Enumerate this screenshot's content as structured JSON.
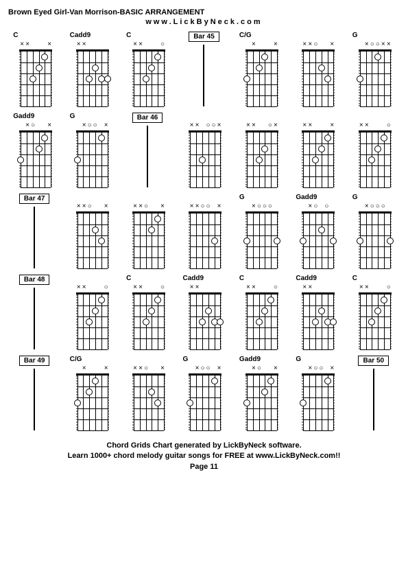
{
  "title": "Brown Eyed Girl-Van Morrison-BASIC ARRANGEMENT",
  "website": "www.LickByNeck.com",
  "footer_line1": "Chord Grids Chart generated by LickByNeck software.",
  "footer_line2": "Learn 1000+ chord melody guitar songs for FREE at www.LickByNeck.com!!",
  "page_label": "Page 11",
  "diagram_style": {
    "strings": 6,
    "frets": 5,
    "fret_height": 16,
    "string_spacing": 8.8,
    "dot_color": "#ffffff",
    "dot_border": "#000000",
    "grid_color": "#000000",
    "side_border_color": "#888888"
  },
  "cells": [
    {
      "type": "chord",
      "label": "C",
      "marks": [
        "×",
        "×",
        "",
        "",
        "",
        "×"
      ],
      "dots": [
        [
          3,
          3
        ],
        [
          4,
          2
        ],
        [
          5,
          1
        ]
      ]
    },
    {
      "type": "chord",
      "label": "Cadd9",
      "marks": [
        "×",
        "×",
        "",
        "",
        "",
        ""
      ],
      "dots": [
        [
          3,
          3
        ],
        [
          4,
          2
        ],
        [
          5,
          3
        ],
        [
          6,
          3
        ]
      ]
    },
    {
      "type": "chord",
      "label": "C",
      "marks": [
        "×",
        "×",
        "",
        "",
        "",
        "○"
      ],
      "dots": [
        [
          3,
          3
        ],
        [
          4,
          2
        ],
        [
          5,
          1
        ]
      ]
    },
    {
      "type": "bar",
      "label": "Bar 45"
    },
    {
      "type": "chord",
      "label": "C/G",
      "marks": [
        "",
        "×",
        "",
        "",
        "",
        "×"
      ],
      "dots": [
        [
          1,
          3
        ],
        [
          3,
          2
        ],
        [
          4,
          1
        ]
      ]
    },
    {
      "type": "chord",
      "label": "",
      "marks": [
        "×",
        "×",
        "○",
        "",
        "",
        "×"
      ],
      "dots": [
        [
          4,
          2
        ],
        [
          5,
          3
        ]
      ]
    },
    {
      "type": "chord",
      "label": "G",
      "marks": [
        "",
        "×",
        "○",
        "○",
        "×",
        "×"
      ],
      "dots": [
        [
          1,
          3
        ],
        [
          4,
          1
        ]
      ]
    },
    {
      "type": "chord",
      "label": "Gadd9",
      "marks": [
        "",
        "×",
        "○",
        "",
        "",
        "×"
      ],
      "dots": [
        [
          1,
          3
        ],
        [
          4,
          2
        ],
        [
          5,
          1
        ]
      ]
    },
    {
      "type": "chord",
      "label": "G",
      "marks": [
        "",
        "×",
        "○",
        "○",
        "",
        "×"
      ],
      "dots": [
        [
          1,
          3
        ],
        [
          5,
          1
        ]
      ]
    },
    {
      "type": "bar",
      "label": "Bar 46"
    },
    {
      "type": "chord",
      "label": "",
      "marks": [
        "×",
        "×",
        "",
        "○",
        "○",
        "×"
      ],
      "dots": [
        [
          3,
          3
        ]
      ]
    },
    {
      "type": "chord",
      "label": "",
      "marks": [
        "×",
        "×",
        "",
        "",
        "○",
        "×"
      ],
      "dots": [
        [
          3,
          3
        ],
        [
          4,
          2
        ]
      ]
    },
    {
      "type": "chord",
      "label": "",
      "marks": [
        "×",
        "×",
        "",
        "",
        "",
        "×"
      ],
      "dots": [
        [
          3,
          3
        ],
        [
          4,
          2
        ],
        [
          5,
          1
        ]
      ]
    },
    {
      "type": "chord",
      "label": "",
      "marks": [
        "×",
        "×",
        "",
        "",
        "",
        "○"
      ],
      "dots": [
        [
          3,
          3
        ],
        [
          4,
          2
        ],
        [
          5,
          1
        ]
      ]
    },
    {
      "type": "bar",
      "label": "Bar 47"
    },
    {
      "type": "chord",
      "label": "",
      "marks": [
        "×",
        "×",
        "○",
        "",
        "",
        "×"
      ],
      "dots": [
        [
          4,
          2
        ],
        [
          5,
          3
        ]
      ]
    },
    {
      "type": "chord",
      "label": "",
      "marks": [
        "×",
        "×",
        "○",
        "",
        "",
        "×"
      ],
      "dots": [
        [
          4,
          2
        ],
        [
          5,
          1
        ]
      ]
    },
    {
      "type": "chord",
      "label": "",
      "marks": [
        "×",
        "×",
        "○",
        "○",
        "",
        "×"
      ],
      "dots": [
        [
          5,
          3
        ]
      ]
    },
    {
      "type": "chord",
      "label": "G",
      "marks": [
        "",
        "×",
        "○",
        "○",
        "○",
        ""
      ],
      "dots": [
        [
          1,
          3
        ],
        [
          6,
          3
        ]
      ]
    },
    {
      "type": "chord",
      "label": "Gadd9",
      "marks": [
        "",
        "×",
        "○",
        "",
        "○",
        ""
      ],
      "dots": [
        [
          1,
          3
        ],
        [
          4,
          2
        ],
        [
          6,
          3
        ]
      ]
    },
    {
      "type": "chord",
      "label": "G",
      "marks": [
        "",
        "×",
        "○",
        "○",
        "○",
        ""
      ],
      "dots": [
        [
          1,
          3
        ],
        [
          6,
          3
        ]
      ]
    },
    {
      "type": "bar",
      "label": "Bar 48"
    },
    {
      "type": "chord",
      "label": "",
      "marks": [
        "×",
        "×",
        "",
        "",
        "",
        "○"
      ],
      "dots": [
        [
          3,
          3
        ],
        [
          4,
          2
        ],
        [
          5,
          1
        ]
      ]
    },
    {
      "type": "chord",
      "label": "C",
      "marks": [
        "×",
        "×",
        "",
        "",
        "",
        "○"
      ],
      "dots": [
        [
          3,
          3
        ],
        [
          4,
          2
        ],
        [
          5,
          1
        ]
      ]
    },
    {
      "type": "chord",
      "label": "Cadd9",
      "marks": [
        "×",
        "×",
        "",
        "",
        "",
        ""
      ],
      "dots": [
        [
          3,
          3
        ],
        [
          4,
          2
        ],
        [
          5,
          3
        ],
        [
          6,
          3
        ]
      ]
    },
    {
      "type": "chord",
      "label": "C",
      "marks": [
        "×",
        "×",
        "",
        "",
        "",
        "○"
      ],
      "dots": [
        [
          3,
          3
        ],
        [
          4,
          2
        ],
        [
          5,
          1
        ]
      ]
    },
    {
      "type": "chord",
      "label": "Cadd9",
      "marks": [
        "×",
        "×",
        "",
        "",
        "",
        ""
      ],
      "dots": [
        [
          3,
          3
        ],
        [
          4,
          2
        ],
        [
          5,
          3
        ],
        [
          6,
          3
        ]
      ]
    },
    {
      "type": "chord",
      "label": "C",
      "marks": [
        "×",
        "×",
        "",
        "",
        "",
        "○"
      ],
      "dots": [
        [
          3,
          3
        ],
        [
          4,
          2
        ],
        [
          5,
          1
        ]
      ]
    },
    {
      "type": "bar",
      "label": "Bar 49"
    },
    {
      "type": "chord",
      "label": "C/G",
      "marks": [
        "",
        "×",
        "",
        "",
        "",
        "×"
      ],
      "dots": [
        [
          1,
          3
        ],
        [
          3,
          2
        ],
        [
          4,
          1
        ]
      ]
    },
    {
      "type": "chord",
      "label": "",
      "marks": [
        "×",
        "×",
        "○",
        "",
        "",
        "×"
      ],
      "dots": [
        [
          4,
          2
        ],
        [
          5,
          3
        ]
      ]
    },
    {
      "type": "chord",
      "label": "G",
      "marks": [
        "",
        "×",
        "○",
        "○",
        "",
        "×"
      ],
      "dots": [
        [
          1,
          3
        ],
        [
          5,
          1
        ]
      ]
    },
    {
      "type": "chord",
      "label": "Gadd9",
      "marks": [
        "",
        "×",
        "○",
        "",
        "",
        "×"
      ],
      "dots": [
        [
          1,
          3
        ],
        [
          4,
          2
        ],
        [
          5,
          1
        ]
      ]
    },
    {
      "type": "chord",
      "label": "G",
      "marks": [
        "",
        "×",
        "○",
        "○",
        "",
        "×"
      ],
      "dots": [
        [
          1,
          3
        ],
        [
          5,
          1
        ]
      ]
    },
    {
      "type": "bar",
      "label": "Bar 50"
    }
  ]
}
